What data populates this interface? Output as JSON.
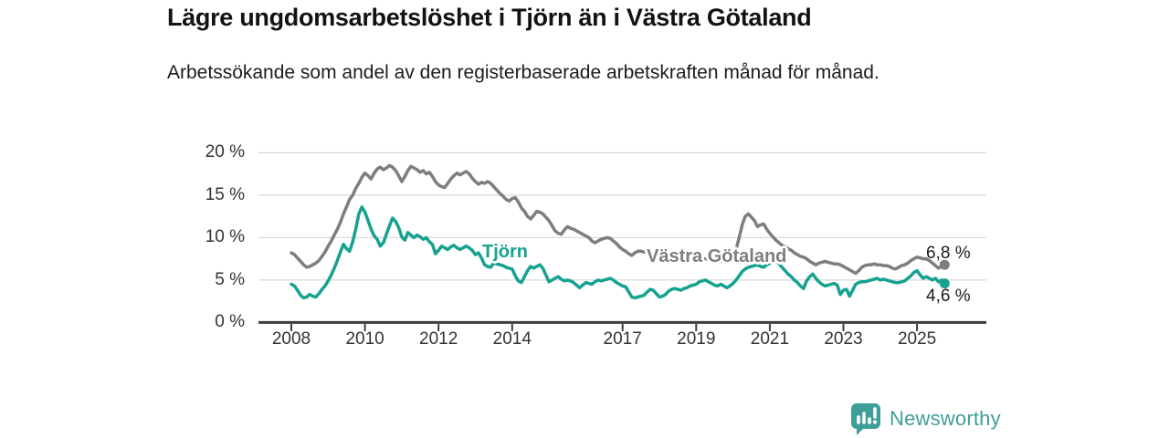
{
  "header": {
    "title": "Lägre ungdomsarbetslöshet i Tjörn än i Västra Götaland",
    "subtitle": "Arbetssökande som andel av den registerbaserade arbetskraften månad för månad."
  },
  "colors": {
    "background": "#ffffff",
    "title_text": "#121212",
    "subtitle_text": "#1c1c1c",
    "axis": "#3d3d3d",
    "tick_label": "#333333",
    "gridline": "#d9d9d9",
    "tjorn_teal": "#17a28f",
    "vastra_gotaland_gray": "#7e7e7e",
    "value_label": "#1a1a1a",
    "brand_teal": "#3e9f98"
  },
  "chart_data": {
    "type": "line",
    "unit": "%",
    "x_ticks": [
      2008,
      2010,
      2012,
      2014,
      2017,
      2019,
      2021,
      2023,
      2025
    ],
    "x_tick_labels": [
      "2008",
      "2010",
      "2012",
      "2014",
      "2017",
      "2019",
      "2021",
      "2023",
      "2025"
    ],
    "y_ticks": [
      0,
      5,
      10,
      15,
      20
    ],
    "y_tick_labels": [
      "0 %",
      "5 %",
      "10 %",
      "15 %",
      "20 %"
    ],
    "xlim": [
      2007.1,
      2026.9
    ],
    "ylim": [
      0,
      21
    ],
    "grid": "horizontal-only",
    "legend": "inline-labels",
    "x_start": 2008.0,
    "x_step_months": 1,
    "series": [
      {
        "id": "tjorn",
        "name": "Tjörn",
        "color": "#17a28f",
        "end_label": "4,6 %",
        "end_value": 4.6,
        "values": [
          4.5,
          4.3,
          3.8,
          3.2,
          2.9,
          3.0,
          3.3,
          3.1,
          3.0,
          3.4,
          3.9,
          4.3,
          4.9,
          5.6,
          6.4,
          7.3,
          8.3,
          9.2,
          8.7,
          8.4,
          9.5,
          11.0,
          12.8,
          13.6,
          13.0,
          12.0,
          11.0,
          10.2,
          9.8,
          9.0,
          9.4,
          10.4,
          11.4,
          12.3,
          11.9,
          11.2,
          10.1,
          9.7,
          10.6,
          10.3,
          10.0,
          10.3,
          10.1,
          9.8,
          10.0,
          9.5,
          9.2,
          8.1,
          8.5,
          9.0,
          8.8,
          8.6,
          8.9,
          9.1,
          8.8,
          8.6,
          8.8,
          9.0,
          8.8,
          8.5,
          8.0,
          8.2,
          7.6,
          6.8,
          6.6,
          6.5,
          7.0,
          6.9,
          6.8,
          6.7,
          6.5,
          6.4,
          6.3,
          5.5,
          4.9,
          4.7,
          5.4,
          6.1,
          6.6,
          6.4,
          6.6,
          6.8,
          6.4,
          5.6,
          4.8,
          5.0,
          5.2,
          5.4,
          5.1,
          4.9,
          5.0,
          4.9,
          4.7,
          4.4,
          4.1,
          4.4,
          4.7,
          4.6,
          4.5,
          4.8,
          5.0,
          4.9,
          5.0,
          5.1,
          5.2,
          5.0,
          4.7,
          4.5,
          4.3,
          4.2,
          3.6,
          3.0,
          2.9,
          3.0,
          3.1,
          3.2,
          3.6,
          3.9,
          3.8,
          3.4,
          3.0,
          3.1,
          3.3,
          3.7,
          3.9,
          4.0,
          3.9,
          3.8,
          4.0,
          4.1,
          4.3,
          4.4,
          4.5,
          4.8,
          4.9,
          5.0,
          4.8,
          4.6,
          4.4,
          4.3,
          4.5,
          4.3,
          4.1,
          4.3,
          4.6,
          5.0,
          5.5,
          6.0,
          6.3,
          6.5,
          6.6,
          6.7,
          6.8,
          6.6,
          6.5,
          6.8,
          7.0,
          7.2,
          7.3,
          6.9,
          6.5,
          6.1,
          5.7,
          5.4,
          5.0,
          4.7,
          4.3,
          4.0,
          4.9,
          5.4,
          5.7,
          5.2,
          4.8,
          4.5,
          4.3,
          4.4,
          4.5,
          4.6,
          4.4,
          3.3,
          3.8,
          3.9,
          3.1,
          3.8,
          4.5,
          4.7,
          4.8,
          4.8,
          4.9,
          5.0,
          5.1,
          5.2,
          5.0,
          5.1,
          5.0,
          4.9,
          4.8,
          4.7,
          4.7,
          4.8,
          4.9,
          5.2,
          5.5,
          5.9,
          6.1,
          5.6,
          5.2,
          5.4,
          5.2,
          5.0,
          5.2,
          4.8,
          5.0,
          4.6
        ]
      },
      {
        "id": "vastra-gotaland",
        "name": "Västra Götaland",
        "color": "#7e7e7e",
        "end_label": "6,8 %",
        "end_value": 6.8,
        "values": [
          8.2,
          8.0,
          7.6,
          7.2,
          6.8,
          6.5,
          6.6,
          6.8,
          7.0,
          7.3,
          7.8,
          8.3,
          9.0,
          9.6,
          10.3,
          11.0,
          11.8,
          12.8,
          13.6,
          14.5,
          15.0,
          15.8,
          16.4,
          17.1,
          17.6,
          17.3,
          16.9,
          17.6,
          18.1,
          18.3,
          18.0,
          18.2,
          18.5,
          18.3,
          17.9,
          17.3,
          16.6,
          17.2,
          17.9,
          18.4,
          18.2,
          18.0,
          17.7,
          17.9,
          17.5,
          17.7,
          17.2,
          16.6,
          16.2,
          16.0,
          15.9,
          16.4,
          16.9,
          17.3,
          17.6,
          17.4,
          17.6,
          17.8,
          17.5,
          17.0,
          16.6,
          16.3,
          16.5,
          16.4,
          16.6,
          16.4,
          16.0,
          15.6,
          15.2,
          14.9,
          14.5,
          14.3,
          14.6,
          14.7,
          14.2,
          13.5,
          13.1,
          12.5,
          12.2,
          12.6,
          13.1,
          13.0,
          12.8,
          12.4,
          12.0,
          11.4,
          10.8,
          10.5,
          10.4,
          10.9,
          11.3,
          11.1,
          11.0,
          10.8,
          10.6,
          10.4,
          10.2,
          10.0,
          9.6,
          9.4,
          9.6,
          9.8,
          9.9,
          10.0,
          9.9,
          9.6,
          9.3,
          8.9,
          8.6,
          8.4,
          8.1,
          7.9,
          8.2,
          8.4,
          8.4,
          8.3,
          8.4,
          8.3,
          8.2,
          8.0,
          7.8,
          7.6,
          7.4,
          7.5,
          7.7,
          7.8,
          7.8,
          7.7,
          7.6,
          7.7,
          7.6,
          7.4,
          7.3,
          7.4,
          7.5,
          7.5,
          7.4,
          7.2,
          7.0,
          7.1,
          7.2,
          7.3,
          7.4,
          7.5,
          7.9,
          8.6,
          10.0,
          11.5,
          12.5,
          12.8,
          12.4,
          12.0,
          11.3,
          11.5,
          11.6,
          11.0,
          10.5,
          10.1,
          9.7,
          9.4,
          9.1,
          8.9,
          8.7,
          8.5,
          8.2,
          8.0,
          7.8,
          7.7,
          7.5,
          7.2,
          7.0,
          6.8,
          7.0,
          7.1,
          7.2,
          7.1,
          7.0,
          6.9,
          6.9,
          6.8,
          6.6,
          6.4,
          6.2,
          6.0,
          5.8,
          6.1,
          6.5,
          6.7,
          6.8,
          6.8,
          6.9,
          6.8,
          6.8,
          6.7,
          6.7,
          6.6,
          6.4,
          6.3,
          6.5,
          6.7,
          6.8,
          7.0,
          7.3,
          7.5,
          7.7,
          7.6,
          7.5,
          7.5,
          7.3,
          7.0,
          6.7,
          6.4,
          6.6,
          6.8
        ]
      }
    ]
  },
  "footer": {
    "brand": "Newsworthy"
  }
}
